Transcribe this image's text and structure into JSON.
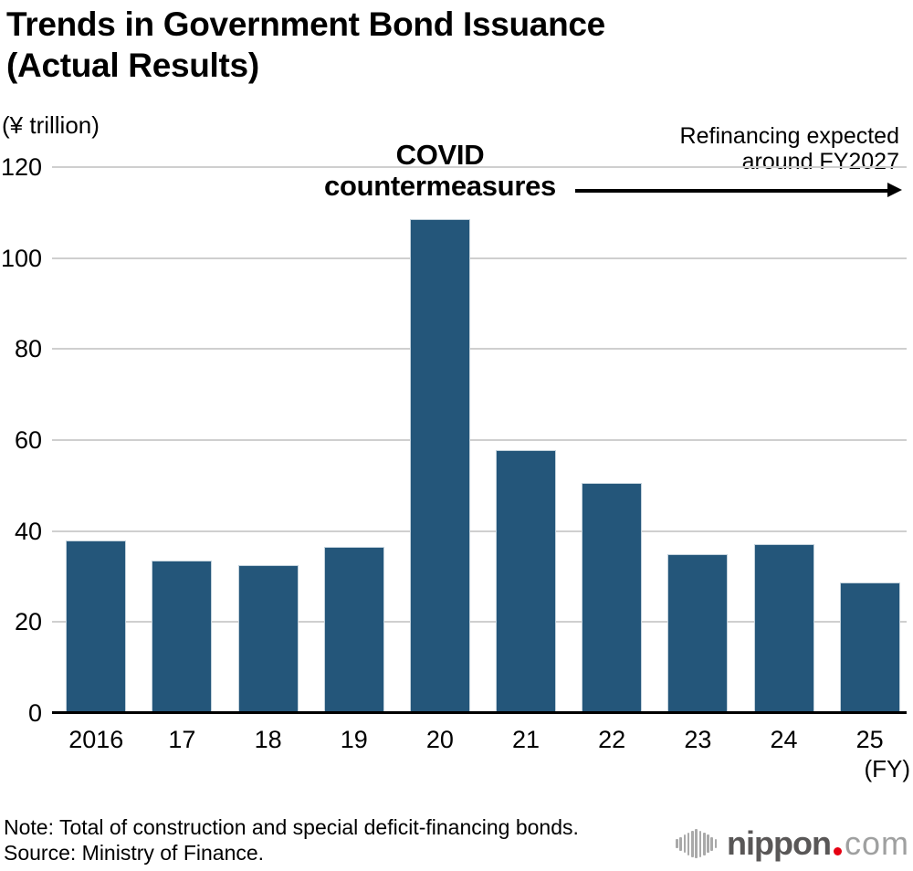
{
  "header": {
    "line1": "Trends in Government Bond Issuance",
    "line2": "(Actual Results)"
  },
  "labels": {
    "unit": "(¥ trillion)",
    "fy": "(FY)"
  },
  "annotations": {
    "covid": {
      "line1": "COVID",
      "line2": "countermeasures"
    },
    "refinancing": {
      "line1": "Refinancing expected",
      "line2": "around FY2027"
    }
  },
  "footer": {
    "note": "Note: Total of construction and special deficit-financing bonds.",
    "source": "Source: Ministry of Finance."
  },
  "logo": {
    "name": "nippon",
    "dot": ".",
    "tld": "com"
  },
  "colors": {
    "bar": "#24567A",
    "grid": "#cfcfcf",
    "axis": "#000000",
    "logo_dark_gray": "#595757",
    "logo_light_gray": "#9fa0a0",
    "logo_red": "#e60012"
  },
  "chart_data": {
    "type": "bar",
    "title": "Trends in Government Bond Issuance (Actual Results)",
    "categories": [
      "2016",
      "17",
      "18",
      "19",
      "20",
      "21",
      "22",
      "23",
      "24",
      "25"
    ],
    "values": [
      38.0,
      33.6,
      32.6,
      36.6,
      108.6,
      57.7,
      50.5,
      35.0,
      37.2,
      28.6
    ],
    "xlabel": "(FY)",
    "ylabel": "(¥ trillion)",
    "ylim": [
      0,
      120
    ],
    "yticks": [
      0,
      20,
      40,
      60,
      80,
      100,
      120
    ],
    "grid": true,
    "legend": "none",
    "annotations": [
      "COVID countermeasures",
      "Refinancing expected around FY2027"
    ]
  }
}
